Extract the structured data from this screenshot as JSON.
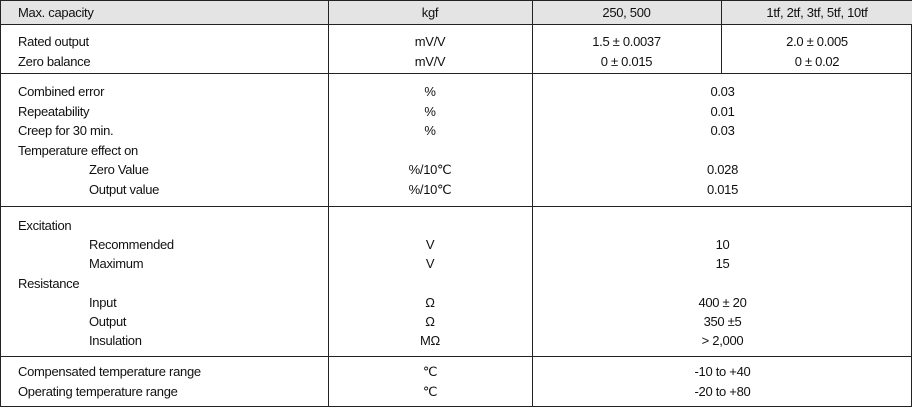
{
  "header": {
    "label": "Max. capacity",
    "unit": "kgf",
    "col_a": "250, 500",
    "col_b": "1tf, 2tf, 3tf, 5tf, 10tf"
  },
  "sections": [
    {
      "rows": [
        {
          "label": "Rated output",
          "unit": "mV/V",
          "a": "1.5 ± 0.0037",
          "b": "2.0 ± 0.005"
        },
        {
          "label": "Zero balance",
          "unit": "mV/V",
          "a": "0 ± 0.015",
          "b": "0 ± 0.02"
        }
      ]
    },
    {
      "rows": [
        {
          "label": "Combined error",
          "unit": "%",
          "value": "0.03"
        },
        {
          "label": "Repeatability",
          "unit": "%",
          "value": "0.01"
        },
        {
          "label": "Creep for 30 min.",
          "unit": "%",
          "value": "0.03"
        },
        {
          "label": "Temperature effect on",
          "unit": "",
          "value": ""
        },
        {
          "label": "Zero Value",
          "indent": true,
          "unit": "%/10℃",
          "value": "0.028"
        },
        {
          "label": "Output value",
          "indent": true,
          "unit": "%/10℃",
          "value": "0.015"
        }
      ]
    },
    {
      "rows": [
        {
          "label": "Excitation",
          "unit": "",
          "value": ""
        },
        {
          "label": "Recommended",
          "indent": true,
          "unit": "V",
          "value": "10"
        },
        {
          "label": "Maximum",
          "indent": true,
          "unit": "V",
          "value": "15"
        },
        {
          "label": "Resistance",
          "unit": "",
          "value": ""
        },
        {
          "label": "Input",
          "indent": true,
          "unit": "Ω",
          "value": "400 ± 20"
        },
        {
          "label": "Output",
          "indent": true,
          "unit": "Ω",
          "value": "350 ±5"
        },
        {
          "label": "Insulation",
          "indent": true,
          "unit": "MΩ",
          "value": "> 2,000"
        }
      ]
    },
    {
      "rows": [
        {
          "label": "Compensated temperature range",
          "unit": "℃",
          "value": "-10 to +40"
        },
        {
          "label": "Operating temperature range",
          "unit": "℃",
          "value": "-20 to +80"
        }
      ]
    }
  ]
}
